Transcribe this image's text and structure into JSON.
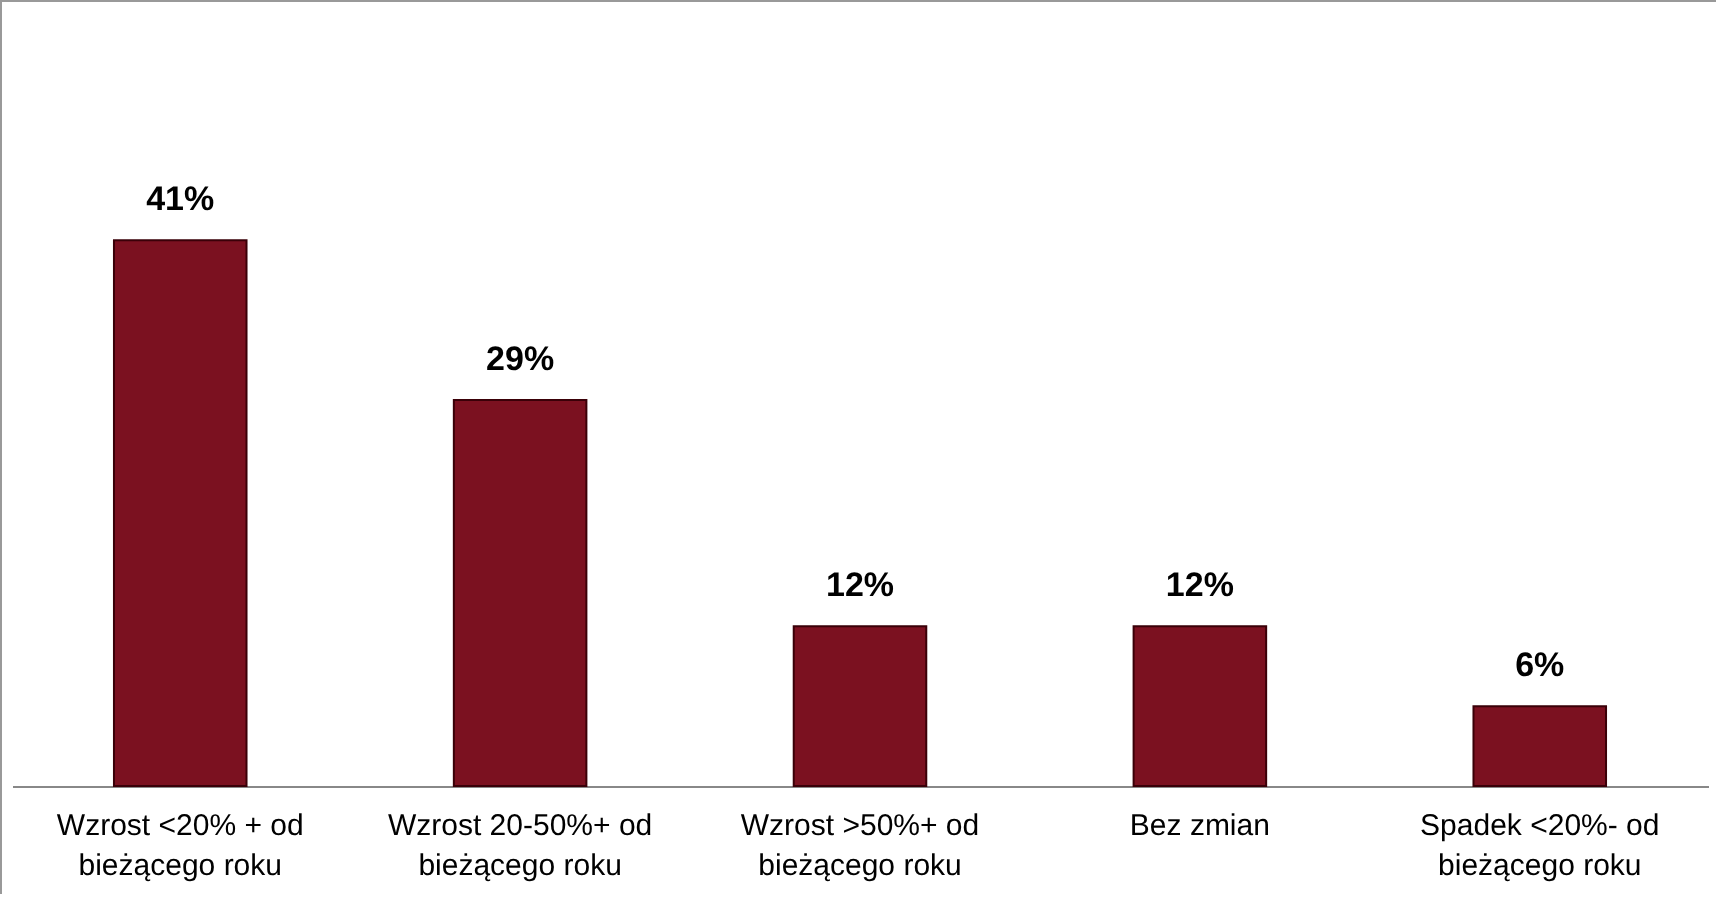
{
  "chart_data": {
    "type": "bar",
    "categories": [
      "Wzrost  <20% + od bieżącego roku",
      "Wzrost 20-50%+ od bieżącego roku",
      "Wzrost  >50%+ od bieżącego roku",
      "Bez zmian",
      "Spadek <20%- od bieżącego roku"
    ],
    "values": [
      41,
      29,
      12,
      12,
      6
    ],
    "value_labels": [
      "41%",
      "29%",
      "12%",
      "12%",
      "6%"
    ],
    "color": "#7b1120"
  }
}
